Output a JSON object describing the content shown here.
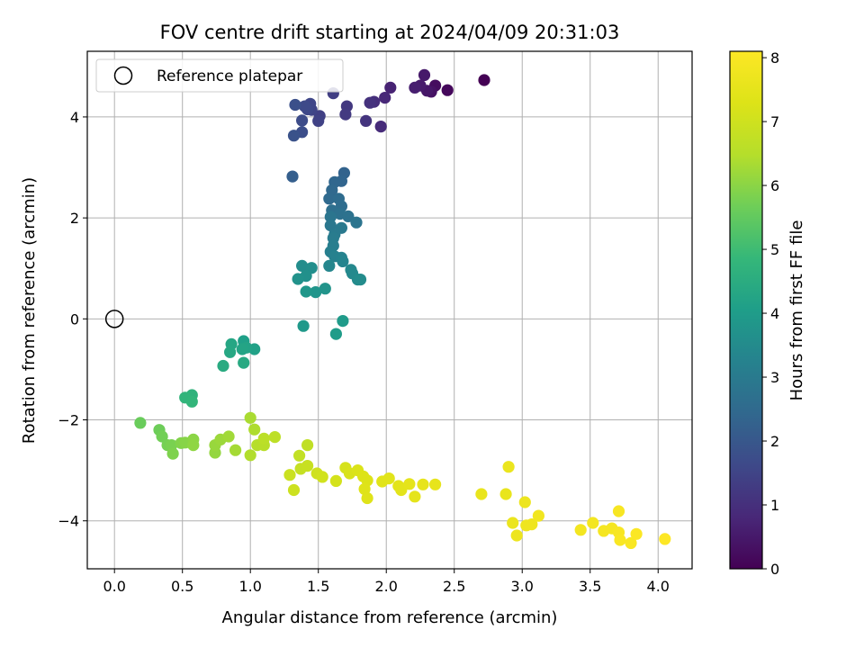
{
  "chart_data": {
    "type": "scatter",
    "title": "FOV centre drift starting at 2024/04/09 20:31:03",
    "xlabel": "Angular distance from reference (arcmin)",
    "ylabel": "Rotation from reference (arcmin)",
    "xlim": [
      -0.2,
      4.25
    ],
    "ylim": [
      -4.95,
      5.3
    ],
    "xticks": [
      "0.0",
      "0.5",
      "1.0",
      "1.5",
      "2.0",
      "2.5",
      "3.0",
      "3.5",
      "4.0"
    ],
    "yticks": [
      "−4",
      "−2",
      "0",
      "2",
      "4"
    ],
    "grid": true,
    "legend": {
      "position": "top-left",
      "entries": [
        "Reference platepar"
      ]
    },
    "reference_point": {
      "x": 0.0,
      "y": 0.0,
      "label": "Reference platepar"
    },
    "colorbar": {
      "label": "Hours from first FF file",
      "colormap": "viridis",
      "range": [
        0,
        8.1
      ],
      "ticks": [
        "0",
        "1",
        "2",
        "3",
        "4",
        "5",
        "6",
        "7",
        "8"
      ]
    },
    "points": [
      [
        2.72,
        4.73,
        0.0
      ],
      [
        2.45,
        4.53,
        0.15
      ],
      [
        2.36,
        4.62,
        0.25
      ],
      [
        2.33,
        4.5,
        0.35
      ],
      [
        2.3,
        4.52,
        0.45
      ],
      [
        2.28,
        4.83,
        0.5
      ],
      [
        2.25,
        4.62,
        0.55
      ],
      [
        2.21,
        4.58,
        0.6
      ],
      [
        2.03,
        4.58,
        0.7
      ],
      [
        1.99,
        4.38,
        0.8
      ],
      [
        1.96,
        3.81,
        0.9
      ],
      [
        1.91,
        4.3,
        0.95
      ],
      [
        1.88,
        4.28,
        1.05
      ],
      [
        1.85,
        3.92,
        1.1
      ],
      [
        1.71,
        4.21,
        1.2
      ],
      [
        1.7,
        4.05,
        1.25
      ],
      [
        1.61,
        4.47,
        1.35
      ],
      [
        1.51,
        4.02,
        1.4
      ],
      [
        1.5,
        3.92,
        1.45
      ],
      [
        1.45,
        4.14,
        1.5
      ],
      [
        1.44,
        4.26,
        1.55
      ],
      [
        1.42,
        4.15,
        1.6
      ],
      [
        1.4,
        4.21,
        1.65
      ],
      [
        1.38,
        3.93,
        1.7
      ],
      [
        1.38,
        3.7,
        1.75
      ],
      [
        1.33,
        4.24,
        1.8
      ],
      [
        1.32,
        3.63,
        1.85
      ],
      [
        1.31,
        2.82,
        2.2
      ],
      [
        1.69,
        2.89,
        2.3
      ],
      [
        1.67,
        2.73,
        2.35
      ],
      [
        1.62,
        2.71,
        2.4
      ],
      [
        1.6,
        2.55,
        2.45
      ],
      [
        1.58,
        2.38,
        2.5
      ],
      [
        1.65,
        2.38,
        2.55
      ],
      [
        1.67,
        2.23,
        2.6
      ],
      [
        1.6,
        2.15,
        2.65
      ],
      [
        1.66,
        2.08,
        2.7
      ],
      [
        1.72,
        2.03,
        2.75
      ],
      [
        1.78,
        1.91,
        2.8
      ],
      [
        1.59,
        2.02,
        2.85
      ],
      [
        1.59,
        1.85,
        2.9
      ],
      [
        1.67,
        1.8,
        2.95
      ],
      [
        1.62,
        1.67,
        3.0
      ],
      [
        1.61,
        1.6,
        3.05
      ],
      [
        1.61,
        1.45,
        3.1
      ],
      [
        1.59,
        1.33,
        3.15
      ],
      [
        1.62,
        1.24,
        3.2
      ],
      [
        1.67,
        1.21,
        3.25
      ],
      [
        1.68,
        1.14,
        3.3
      ],
      [
        1.58,
        1.05,
        3.35
      ],
      [
        1.74,
        0.97,
        3.4
      ],
      [
        1.75,
        0.9,
        3.45
      ],
      [
        1.79,
        0.78,
        3.5
      ],
      [
        1.81,
        0.78,
        3.52
      ],
      [
        1.38,
        1.05,
        3.55
      ],
      [
        1.45,
        1.01,
        3.6
      ],
      [
        1.41,
        0.85,
        3.65
      ],
      [
        1.35,
        0.79,
        3.7
      ],
      [
        1.55,
        0.6,
        3.75
      ],
      [
        1.48,
        0.53,
        3.8
      ],
      [
        1.41,
        0.54,
        3.85
      ],
      [
        1.39,
        -0.14,
        3.9
      ],
      [
        1.68,
        -0.04,
        3.95
      ],
      [
        1.63,
        -0.3,
        4.0
      ],
      [
        0.95,
        -0.44,
        4.1
      ],
      [
        1.03,
        -0.6,
        4.15
      ],
      [
        0.97,
        -0.57,
        4.2
      ],
      [
        0.94,
        -0.6,
        4.25
      ],
      [
        0.86,
        -0.5,
        4.3
      ],
      [
        0.85,
        -0.66,
        4.35
      ],
      [
        0.95,
        -0.87,
        4.4
      ],
      [
        0.8,
        -0.93,
        4.45
      ],
      [
        0.57,
        -1.51,
        4.7
      ],
      [
        0.52,
        -1.56,
        4.75
      ],
      [
        0.57,
        -1.64,
        4.8
      ],
      [
        0.19,
        -2.06,
        5.6
      ],
      [
        0.33,
        -2.2,
        5.65
      ],
      [
        0.35,
        -2.33,
        5.7
      ],
      [
        0.39,
        -2.5,
        5.75
      ],
      [
        0.42,
        -2.5,
        5.8
      ],
      [
        0.43,
        -2.67,
        5.85
      ],
      [
        0.49,
        -2.46,
        5.9
      ],
      [
        0.52,
        -2.45,
        5.95
      ],
      [
        0.58,
        -2.39,
        6.0
      ],
      [
        0.58,
        -2.5,
        6.05
      ],
      [
        0.74,
        -2.65,
        6.1
      ],
      [
        0.74,
        -2.5,
        6.15
      ],
      [
        0.78,
        -2.39,
        6.2
      ],
      [
        0.84,
        -2.33,
        6.25
      ],
      [
        0.89,
        -2.6,
        6.3
      ],
      [
        1.0,
        -1.96,
        6.35
      ],
      [
        1.03,
        -2.19,
        6.4
      ],
      [
        1.0,
        -2.7,
        6.45
      ],
      [
        1.05,
        -2.5,
        6.5
      ],
      [
        1.1,
        -2.5,
        6.55
      ],
      [
        1.1,
        -2.37,
        6.6
      ],
      [
        1.18,
        -2.34,
        6.65
      ],
      [
        1.42,
        -2.5,
        6.7
      ],
      [
        1.36,
        -2.71,
        6.75
      ],
      [
        1.37,
        -2.97,
        6.8
      ],
      [
        1.42,
        -2.91,
        6.85
      ],
      [
        1.29,
        -3.09,
        6.9
      ],
      [
        1.32,
        -3.39,
        6.95
      ],
      [
        1.49,
        -3.06,
        7.0
      ],
      [
        1.53,
        -3.13,
        7.05
      ],
      [
        1.63,
        -3.21,
        7.1
      ],
      [
        1.7,
        -2.95,
        7.15
      ],
      [
        1.73,
        -3.06,
        7.2
      ],
      [
        1.79,
        -3.0,
        7.25
      ],
      [
        1.83,
        -3.12,
        7.3
      ],
      [
        1.86,
        -3.2,
        7.3
      ],
      [
        1.84,
        -3.37,
        7.35
      ],
      [
        1.86,
        -3.55,
        7.35
      ],
      [
        1.97,
        -3.22,
        7.4
      ],
      [
        2.02,
        -3.16,
        7.4
      ],
      [
        2.09,
        -3.31,
        7.45
      ],
      [
        2.11,
        -3.39,
        7.45
      ],
      [
        2.17,
        -3.27,
        7.5
      ],
      [
        2.21,
        -3.52,
        7.5
      ],
      [
        2.27,
        -3.28,
        7.55
      ],
      [
        2.36,
        -3.28,
        7.55
      ],
      [
        2.7,
        -3.47,
        7.6
      ],
      [
        2.88,
        -3.47,
        7.6
      ],
      [
        2.9,
        -2.93,
        7.65
      ],
      [
        2.93,
        -4.04,
        7.65
      ],
      [
        2.96,
        -4.29,
        7.7
      ],
      [
        3.02,
        -3.63,
        7.7
      ],
      [
        3.03,
        -4.09,
        7.75
      ],
      [
        3.07,
        -4.07,
        7.75
      ],
      [
        3.12,
        -3.9,
        7.8
      ],
      [
        3.43,
        -4.18,
        7.85
      ],
      [
        3.52,
        -4.04,
        7.85
      ],
      [
        3.6,
        -4.2,
        7.9
      ],
      [
        3.66,
        -4.15,
        7.9
      ],
      [
        3.71,
        -4.23,
        7.95
      ],
      [
        3.71,
        -3.81,
        7.95
      ],
      [
        3.72,
        -4.38,
        8.0
      ],
      [
        3.8,
        -4.44,
        8.0
      ],
      [
        3.84,
        -4.26,
        8.05
      ],
      [
        4.05,
        -4.36,
        8.1
      ]
    ]
  }
}
